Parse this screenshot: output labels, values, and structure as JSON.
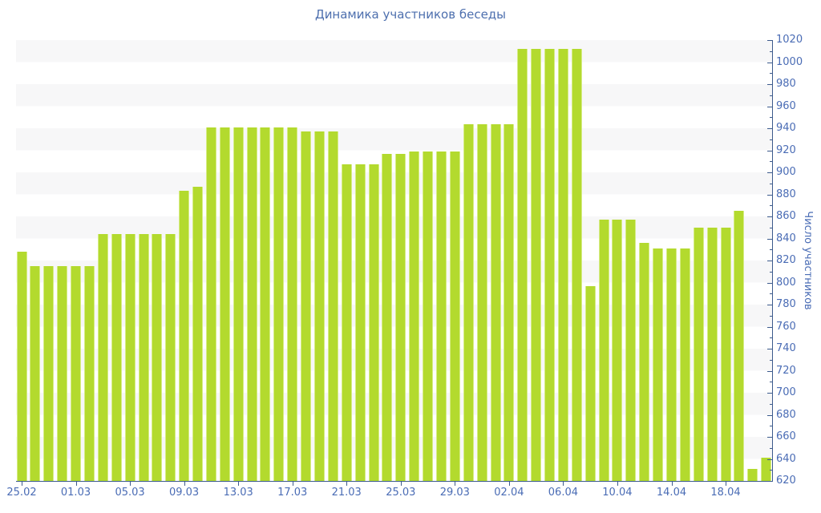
{
  "chart_data": {
    "type": "bar",
    "title": "Динамика участников беседы",
    "xlabel": "",
    "ylabel": "Число участников",
    "ylim": [
      620,
      1020
    ],
    "y_major_step": 20,
    "y_minor_step": 10,
    "legend_position": "none",
    "grid": "alternating horizontal bands every 20 units",
    "categories": [
      "25.02",
      "26.02",
      "27.02",
      "28.02",
      "01.03",
      "02.03",
      "03.03",
      "04.03",
      "05.03",
      "06.03",
      "07.03",
      "08.03",
      "09.03",
      "10.03",
      "11.03",
      "12.03",
      "13.03",
      "14.03",
      "15.03",
      "16.03",
      "17.03",
      "18.03",
      "19.03",
      "20.03",
      "21.03",
      "22.03",
      "23.03",
      "24.03",
      "25.03",
      "26.03",
      "27.03",
      "28.03",
      "29.03",
      "30.03",
      "31.03",
      "01.04",
      "02.04",
      "03.04",
      "04.04",
      "05.04",
      "06.04",
      "07.04",
      "08.04",
      "09.04",
      "10.04",
      "11.04",
      "12.04",
      "13.04",
      "14.04",
      "15.04",
      "16.04",
      "17.04",
      "18.04",
      "19.04",
      "20.04",
      "21.04"
    ],
    "values": [
      828,
      815,
      815,
      815,
      815,
      815,
      844,
      844,
      844,
      844,
      844,
      844,
      883,
      887,
      941,
      941,
      941,
      941,
      941,
      941,
      941,
      937,
      937,
      937,
      907,
      907,
      907,
      917,
      917,
      919,
      919,
      919,
      919,
      944,
      944,
      944,
      944,
      1012,
      1012,
      1012,
      1012,
      1012,
      797,
      857,
      857,
      857,
      836,
      831,
      831,
      831,
      850,
      850,
      850,
      865,
      631,
      641
    ],
    "x_tick_labels": [
      "25.02",
      "01.03",
      "05.03",
      "09.03",
      "13.03",
      "17.03",
      "21.03",
      "25.03",
      "29.03",
      "02.04",
      "06.04",
      "10.04",
      "14.04",
      "18.04"
    ],
    "x_tick_indices": [
      0,
      4,
      8,
      12,
      16,
      20,
      24,
      28,
      32,
      36,
      40,
      44,
      48,
      52
    ]
  },
  "colors": {
    "background": "#ffffff",
    "stripe_band": "#f7f7f8",
    "bar_fill": "#b3da2e",
    "bar_edge": "#d6ec86",
    "axis_line": "#3c5a8c",
    "tick_label": "#4a6cb5",
    "title_text": "#4d6fae"
  }
}
